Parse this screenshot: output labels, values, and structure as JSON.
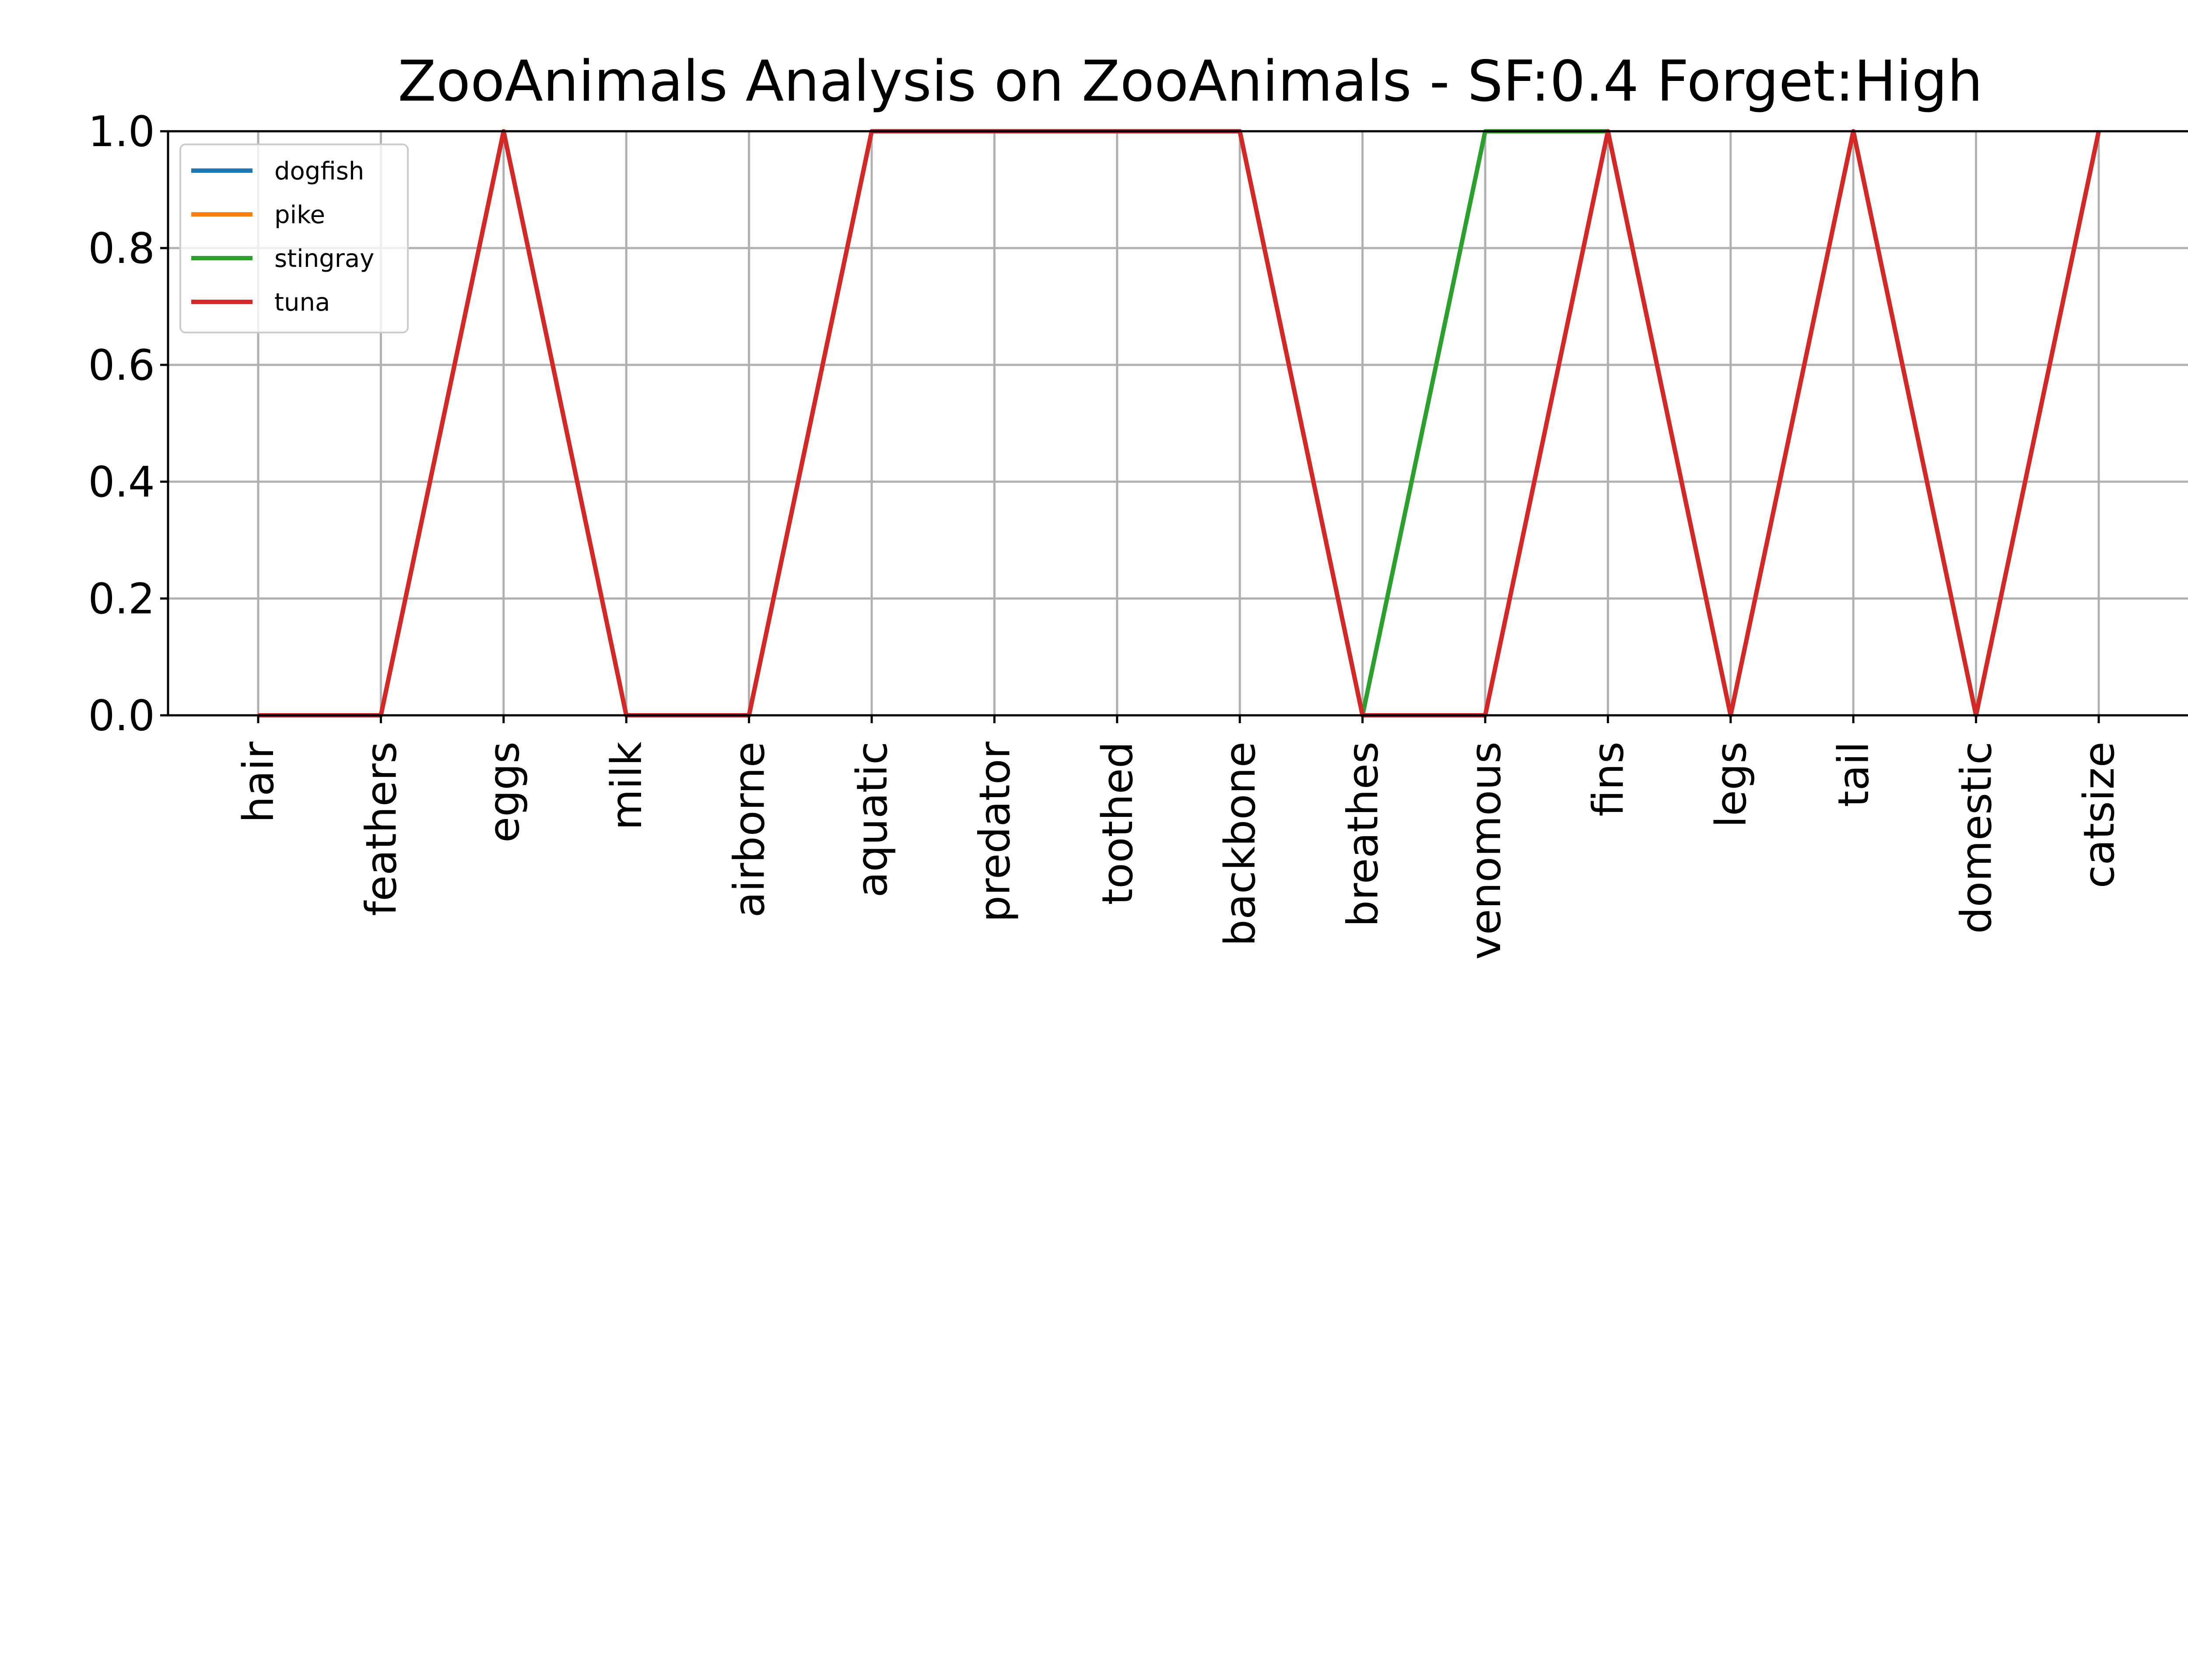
{
  "chart_data": {
    "type": "line",
    "title": "ZooAnimals Analysis on ZooAnimals - SF:0.4 Forget:High",
    "xlabel": "",
    "ylabel": "",
    "ylim": [
      0,
      1
    ],
    "yticks": [
      "0.0",
      "0.2",
      "0.4",
      "0.6",
      "0.8",
      "1.0"
    ],
    "grid": true,
    "legend_position": "top-left",
    "categories": [
      "hair",
      "feathers",
      "eggs",
      "milk",
      "airborne",
      "aquatic",
      "predator",
      "toothed",
      "backbone",
      "breathes",
      "venomous",
      "fins",
      "legs",
      "tail",
      "domestic",
      "catsize"
    ],
    "series": [
      {
        "name": "dogfish",
        "color": "#1f77b4",
        "values": [
          0,
          0,
          1,
          0,
          0,
          1,
          1,
          1,
          1,
          0,
          0,
          1,
          0,
          1,
          0,
          1
        ]
      },
      {
        "name": "pike",
        "color": "#ff7f0e",
        "values": [
          0,
          0,
          1,
          0,
          0,
          1,
          1,
          1,
          1,
          0,
          0,
          1,
          0,
          1,
          0,
          1
        ]
      },
      {
        "name": "stingray",
        "color": "#2ca02c",
        "values": [
          0,
          0,
          1,
          0,
          0,
          1,
          1,
          1,
          1,
          0,
          1,
          1,
          0,
          1,
          0,
          1
        ]
      },
      {
        "name": "tuna",
        "color": "#d62728",
        "values": [
          0,
          0,
          1,
          0,
          0,
          1,
          1,
          1,
          1,
          0,
          0,
          1,
          0,
          1,
          0,
          1
        ]
      }
    ]
  }
}
